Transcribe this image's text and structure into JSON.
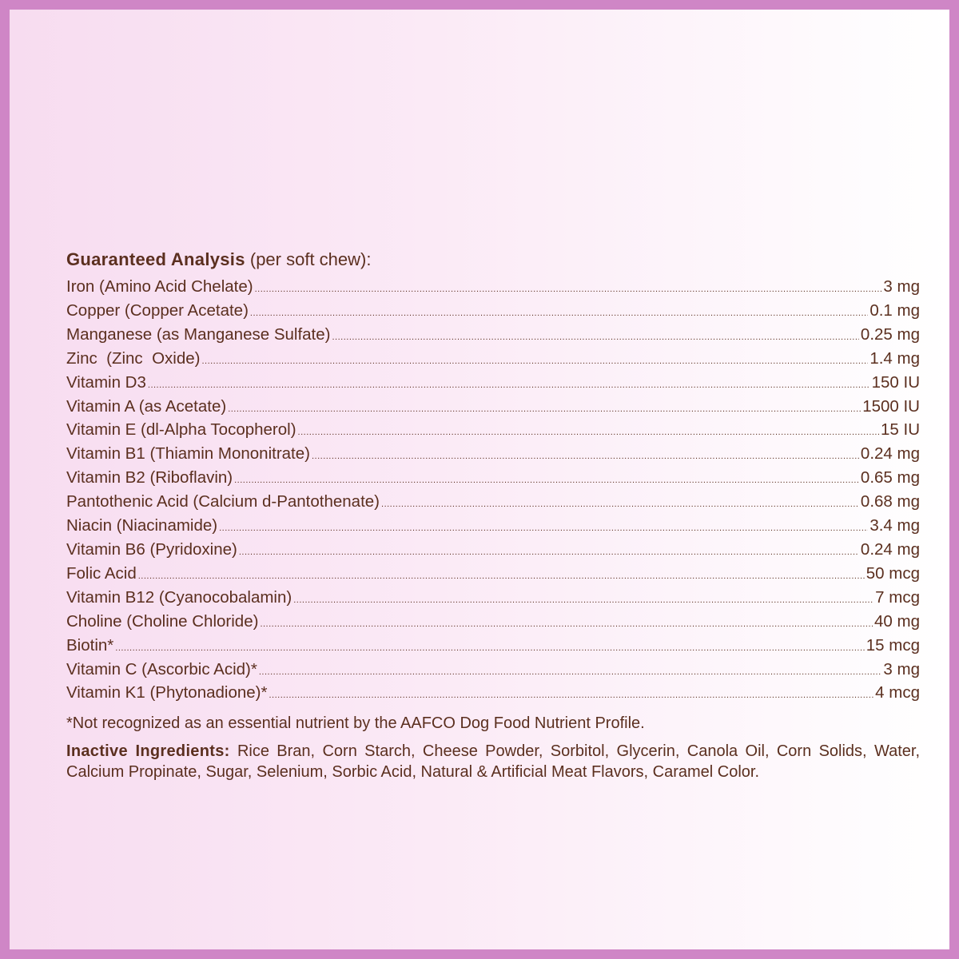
{
  "colors": {
    "border": "#cf86c6",
    "text": "#5b2f1f",
    "background_left": "#f7dcf0",
    "background_right": "#ffffff"
  },
  "heading": {
    "bold": "Guaranteed Analysis",
    "rest": " (per soft chew):"
  },
  "rows": [
    {
      "name": "Iron (Amino Acid Chelate)",
      "value": "3 mg"
    },
    {
      "name": "Copper (Copper Acetate)",
      "value": "0.1 mg"
    },
    {
      "name": "Manganese (as Manganese Sulfate)",
      "value": "0.25 mg"
    },
    {
      "name": "Zinc  (Zinc  Oxide)",
      "value": "1.4 mg"
    },
    {
      "name": "Vitamin D3",
      "value": "150 IU"
    },
    {
      "name": "Vitamin A (as Acetate)",
      "value": "1500 IU"
    },
    {
      "name": "Vitamin E (dl-Alpha Tocopherol)",
      "value": "15 IU"
    },
    {
      "name": "Vitamin B1 (Thiamin Mononitrate)",
      "value": "0.24 mg"
    },
    {
      "name": "Vitamin B2 (Riboflavin)",
      "value": "0.65 mg"
    },
    {
      "name": "Pantothenic Acid (Calcium d-Pantothenate)",
      "value": "0.68 mg"
    },
    {
      "name": "Niacin (Niacinamide)",
      "value": "3.4 mg"
    },
    {
      "name": "Vitamin B6 (Pyridoxine)",
      "value": "0.24 mg"
    },
    {
      "name": "Folic Acid",
      "value": "50 mcg"
    },
    {
      "name": "Vitamin B12 (Cyanocobalamin)",
      "value": "7 mcg"
    },
    {
      "name": "Choline (Choline Chloride)",
      "value": "40 mg"
    },
    {
      "name": "Biotin*",
      "value": "15 mcg"
    },
    {
      "name": "Vitamin C (Ascorbic Acid)*",
      "value": "3 mg"
    },
    {
      "name": "Vitamin K1 (Phytonadione)*",
      "value": "4 mcg"
    }
  ],
  "footnote": "*Not recognized as an essential nutrient by the AAFCO Dog Food Nutrient Profile.",
  "inactive": {
    "label": "Inactive Ingredients:",
    "text": " Rice Bran, Corn Starch, Cheese Powder, Sorbitol, Glycerin, Canola Oil, Corn Solids, Water, Calcium Propinate, Sugar, Selenium, Sorbic Acid, Natural & Artificial Meat Flavors, Caramel Color."
  }
}
